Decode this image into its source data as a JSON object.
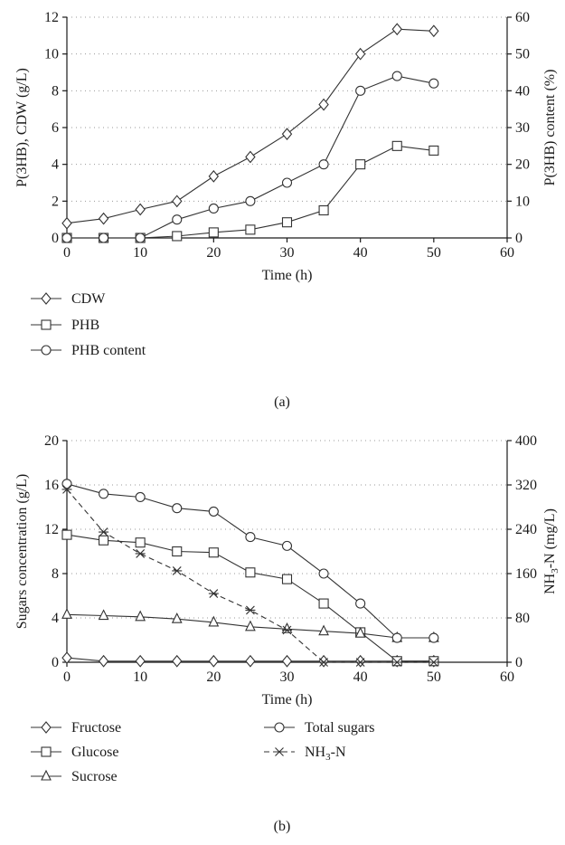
{
  "chart_data": [
    {
      "type": "line",
      "panel_label": "(a)",
      "xlabel": "Time (h)",
      "ylabel": "P(3HB), CDW (g/L)",
      "y2label": "P(3HB) content (%)",
      "xlim": [
        0,
        60
      ],
      "ylim": [
        0,
        12
      ],
      "y2lim": [
        0,
        60
      ],
      "x_ticks": [
        "0",
        "10",
        "20",
        "30",
        "40",
        "50",
        "60"
      ],
      "y_ticks": [
        "0",
        "2",
        "4",
        "6",
        "8",
        "10",
        "12"
      ],
      "y2_ticks": [
        "0",
        "10",
        "20",
        "30",
        "40",
        "50",
        "60"
      ],
      "grid": "horizontal dotted",
      "legend_position": "below",
      "series": [
        {
          "name": "CDW",
          "axis": "left",
          "marker": "diamond",
          "style": "solid",
          "x": [
            0,
            5,
            10,
            15,
            20,
            25,
            30,
            35,
            40,
            45,
            50
          ],
          "values": [
            0.8,
            1.05,
            1.55,
            2.0,
            3.35,
            4.4,
            5.65,
            7.25,
            10.0,
            11.35,
            11.25
          ]
        },
        {
          "name": "PHB",
          "axis": "left",
          "marker": "square",
          "style": "solid",
          "x": [
            0,
            5,
            10,
            15,
            20,
            25,
            30,
            35,
            40,
            45,
            50
          ],
          "values": [
            0.0,
            0.0,
            0.0,
            0.1,
            0.3,
            0.45,
            0.85,
            1.5,
            4.0,
            5.0,
            4.75
          ]
        },
        {
          "name": "PHB content",
          "axis": "right",
          "marker": "circle",
          "style": "solid",
          "x": [
            0,
            5,
            10,
            15,
            20,
            25,
            30,
            35,
            40,
            45,
            50
          ],
          "values": [
            0,
            0,
            0,
            5,
            8,
            10,
            15,
            20,
            40,
            44,
            42
          ]
        }
      ]
    },
    {
      "type": "line",
      "panel_label": "(b)",
      "xlabel": "Time (h)",
      "ylabel": "Sugars concentration (g/L)",
      "y2label_pre": "NH",
      "y2label_sub": "3",
      "y2label_post": "-N (mg/L)",
      "xlim": [
        0,
        60
      ],
      "ylim": [
        0,
        20
      ],
      "y2lim": [
        0,
        400
      ],
      "x_ticks": [
        "0",
        "10",
        "20",
        "30",
        "40",
        "50",
        "60"
      ],
      "y_ticks": [
        "0",
        "4",
        "8",
        "12",
        "16",
        "20"
      ],
      "y2_ticks": [
        "0",
        "80",
        "160",
        "240",
        "320",
        "400"
      ],
      "grid": "horizontal dotted",
      "legend_position": "below",
      "series": [
        {
          "name": "Fructose",
          "axis": "left",
          "marker": "diamond",
          "style": "solid",
          "x": [
            0,
            5,
            10,
            15,
            20,
            25,
            30,
            35,
            40,
            45,
            50
          ],
          "values": [
            0.4,
            0.1,
            0.1,
            0.1,
            0.1,
            0.1,
            0.1,
            0.1,
            0.1,
            0.1,
            0.1
          ]
        },
        {
          "name": "Glucose",
          "axis": "left",
          "marker": "square",
          "style": "solid",
          "x": [
            0,
            5,
            10,
            15,
            20,
            25,
            30,
            35,
            40,
            45,
            50
          ],
          "values": [
            11.5,
            11.0,
            10.8,
            10.0,
            9.9,
            8.1,
            7.5,
            5.3,
            2.7,
            0.1,
            0.1
          ]
        },
        {
          "name": "Sucrose",
          "axis": "left",
          "marker": "triangle",
          "style": "solid",
          "x": [
            0,
            5,
            10,
            15,
            20,
            25,
            30,
            35,
            40,
            45,
            50
          ],
          "values": [
            4.3,
            4.2,
            4.1,
            3.9,
            3.6,
            3.2,
            3.0,
            2.8,
            2.6,
            2.2,
            2.2
          ]
        },
        {
          "name": "Total sugars",
          "axis": "left",
          "marker": "circle",
          "style": "solid",
          "x": [
            0,
            5,
            10,
            15,
            20,
            25,
            30,
            35,
            40,
            45,
            50
          ],
          "values": [
            16.1,
            15.2,
            14.9,
            13.9,
            13.6,
            11.3,
            10.5,
            8.0,
            5.3,
            2.2,
            2.2
          ]
        },
        {
          "name_pre": "NH",
          "name_sub": "3",
          "name_post": "-N",
          "axis": "right",
          "marker": "star",
          "style": "dashed",
          "x": [
            0,
            5,
            10,
            15,
            20,
            25,
            30,
            35,
            40,
            45,
            50
          ],
          "values": [
            312,
            235,
            196,
            165,
            124,
            94,
            58,
            0,
            0,
            0,
            0
          ]
        }
      ]
    }
  ]
}
